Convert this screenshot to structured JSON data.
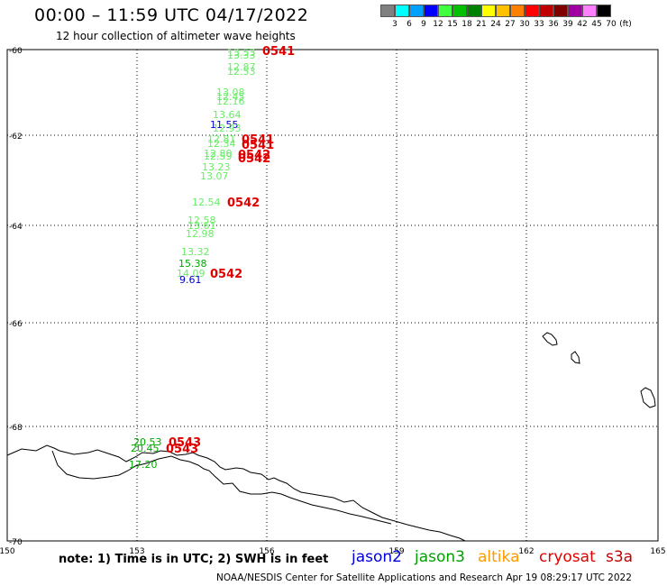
{
  "header": {
    "title": "00:00 – 11:59 UTC 04/17/2022",
    "subtitle": "12 hour collection of altimeter wave heights"
  },
  "legend": {
    "colors": [
      "#808080",
      "#00ffff",
      "#00a0ff",
      "#0000ff",
      "#40ff40",
      "#00c000",
      "#008000",
      "#ffff00",
      "#ffc000",
      "#ff8000",
      "#ff0000",
      "#c00000",
      "#800000",
      "#a000a0",
      "#ff80ff",
      "#000000"
    ],
    "labels": [
      "3",
      "6",
      "9",
      "12",
      "15",
      "18",
      "21",
      "24",
      "27",
      "30",
      "33",
      "36",
      "39",
      "42",
      "45",
      "70",
      "(ft)"
    ]
  },
  "map": {
    "lon_ticks": [
      "150",
      "153",
      "156",
      "159",
      "162",
      "165"
    ],
    "lat_ticks": [
      "-60",
      "-62",
      "-64",
      "-66",
      "-68",
      "-70"
    ]
  },
  "observations": [
    {
      "text": "13.53",
      "color": "#66ee66"
    },
    {
      "text": "13.33",
      "color": "#66ee66"
    },
    {
      "text": "12.87",
      "color": "#66ee66"
    },
    {
      "text": "12.53",
      "color": "#66ee66"
    },
    {
      "text": "13.08",
      "color": "#66ee66"
    },
    {
      "text": "12.45",
      "color": "#66ee66"
    },
    {
      "text": "12.16",
      "color": "#66ee66"
    },
    {
      "text": "13.64",
      "color": "#66ee66"
    },
    {
      "text": "11.55",
      "color": "#0000cc"
    },
    {
      "text": "12.93",
      "color": "#66ee66"
    },
    {
      "text": "12.81",
      "color": "#66ee66"
    },
    {
      "text": "12.34",
      "color": "#66ee66"
    },
    {
      "text": "12.80",
      "color": "#66ee66"
    },
    {
      "text": "12.59",
      "color": "#66ee66"
    },
    {
      "text": "13.23",
      "color": "#66ee66"
    },
    {
      "text": "13.07",
      "color": "#66ee66"
    },
    {
      "text": "12.54",
      "color": "#66ee66"
    },
    {
      "text": "12.58",
      "color": "#66ee66"
    },
    {
      "text": "13.61",
      "color": "#66ee66"
    },
    {
      "text": "12.98",
      "color": "#66ee66"
    },
    {
      "text": "13.32",
      "color": "#66ee66"
    },
    {
      "text": "15.38",
      "color": "#00aa00"
    },
    {
      "text": "14.09",
      "color": "#66ee66"
    },
    {
      "text": "9.61",
      "color": "#0000cc"
    },
    {
      "text": "20.53",
      "color": "#00aa00"
    },
    {
      "text": "20.45",
      "color": "#00aa00"
    },
    {
      "text": "17.20",
      "color": "#00aa00"
    }
  ],
  "passes": [
    "0541",
    "0541",
    "0541",
    "0542",
    "0542",
    "0542",
    "0542",
    "0543",
    "0543"
  ],
  "footer": {
    "note": "note: 1) Time is in UTC; 2) SWH is in feet",
    "satellites": [
      {
        "name": "jason2",
        "color": "#0000dd"
      },
      {
        "name": "jason3",
        "color": "#00a000"
      },
      {
        "name": "altika",
        "color": "#ff9900"
      },
      {
        "name": "cryosat",
        "color": "#e00000"
      },
      {
        "name": "s3a",
        "color": "#c00000"
      }
    ],
    "credit": "NOAA/NESDIS Center for Satellite Applications and Research   Apr 19 08:29:17 UTC 2022"
  }
}
